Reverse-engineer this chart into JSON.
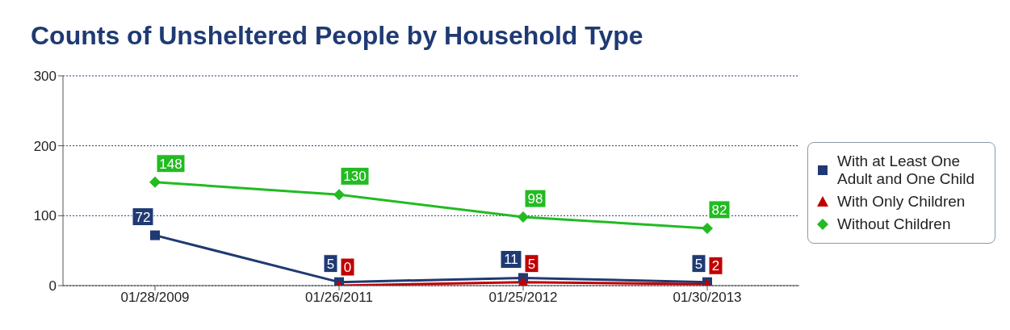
{
  "chart_data": {
    "type": "line",
    "title": "Counts of Unsheltered People by Household Type",
    "categories": [
      "01/28/2009",
      "01/26/2011",
      "01/25/2012",
      "01/30/2013"
    ],
    "series": [
      {
        "name": "With at Least One Adult and One Child",
        "color": "#1f3a73",
        "marker": "square",
        "values": [
          72,
          5,
          11,
          5
        ]
      },
      {
        "name": "With Only Children",
        "color": "#c00000",
        "marker": "triangle",
        "values": [
          null,
          0,
          5,
          2
        ]
      },
      {
        "name": "Without Children",
        "color": "#22bb22",
        "marker": "diamond",
        "values": [
          148,
          130,
          98,
          82
        ]
      }
    ],
    "ylim": [
      0,
      300
    ],
    "yticks": [
      0,
      100,
      200,
      300
    ],
    "grid": "y",
    "legend": "right",
    "data_labels": true
  }
}
